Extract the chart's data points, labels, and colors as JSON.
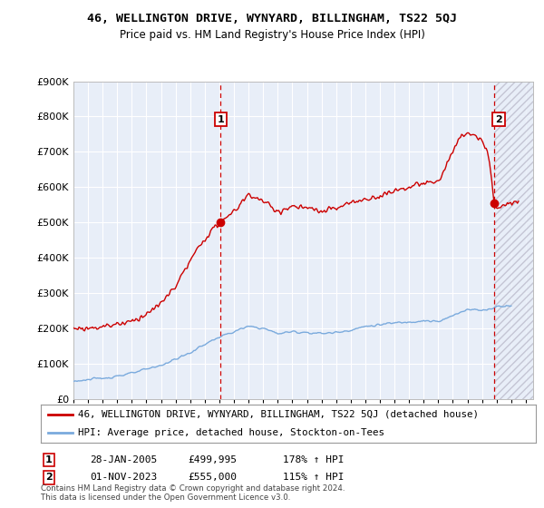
{
  "title": "46, WELLINGTON DRIVE, WYNYARD, BILLINGHAM, TS22 5QJ",
  "subtitle": "Price paid vs. HM Land Registry's House Price Index (HPI)",
  "ylim": [
    0,
    900000
  ],
  "xlim_start": 1995.0,
  "xlim_end": 2026.5,
  "legend_line1": "46, WELLINGTON DRIVE, WYNYARD, BILLINGHAM, TS22 5QJ (detached house)",
  "legend_line2": "HPI: Average price, detached house, Stockton-on-Tees",
  "sale1_label": "1",
  "sale1_date": "28-JAN-2005",
  "sale1_price": "£499,995",
  "sale1_hpi": "178% ↑ HPI",
  "sale1_x": 2005.08,
  "sale1_y": 499995,
  "sale2_label": "2",
  "sale2_date": "01-NOV-2023",
  "sale2_price": "£555,000",
  "sale2_hpi": "115% ↑ HPI",
  "sale2_x": 2023.83,
  "sale2_y": 555000,
  "line_color_red": "#cc0000",
  "line_color_blue": "#7aaadd",
  "background_color": "#ffffff",
  "plot_bg_color": "#e8eef8",
  "grid_color": "#ffffff",
  "footnote": "Contains HM Land Registry data © Crown copyright and database right 2024.\nThis data is licensed under the Open Government Licence v3.0."
}
